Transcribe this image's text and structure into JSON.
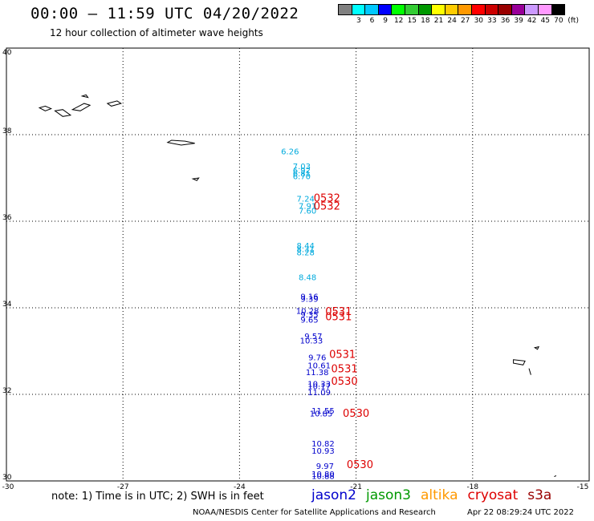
{
  "header": {
    "title": "00:00 – 11:59 UTC 04/20/2022",
    "subtitle": "12 hour collection of altimeter wave heights"
  },
  "color_scale": {
    "unit": "(ft)",
    "items": [
      {
        "label": "",
        "color": "#808080"
      },
      {
        "label": "3",
        "color": "#00ffff"
      },
      {
        "label": "6",
        "color": "#00c8ff"
      },
      {
        "label": "9",
        "color": "#0000ff"
      },
      {
        "label": "12",
        "color": "#00ff00"
      },
      {
        "label": "15",
        "color": "#33cc33"
      },
      {
        "label": "18",
        "color": "#009900"
      },
      {
        "label": "21",
        "color": "#ffff00"
      },
      {
        "label": "24",
        "color": "#ffcc00"
      },
      {
        "label": "27",
        "color": "#ff9900"
      },
      {
        "label": "30",
        "color": "#ff0000"
      },
      {
        "label": "33",
        "color": "#cc0000"
      },
      {
        "label": "36",
        "color": "#990000"
      },
      {
        "label": "39",
        "color": "#990099"
      },
      {
        "label": "42",
        "color": "#cc99ff"
      },
      {
        "label": "45",
        "color": "#ff99ff"
      },
      {
        "label": "70",
        "color": "#000000"
      }
    ]
  },
  "map": {
    "lon_range": [
      -30,
      -15
    ],
    "lat_range": [
      30,
      40
    ],
    "lon_ticks": [
      "-30",
      "-27",
      "-24",
      "-21",
      "-18",
      "-15"
    ],
    "lat_ticks": [
      "30",
      "32",
      "34",
      "36",
      "38",
      "40"
    ],
    "grid": true,
    "observations": [
      {
        "text": "6.26",
        "lon": -22.7,
        "lat": 37.55,
        "color": "#00aadd"
      },
      {
        "text": "7.03",
        "lon": -22.4,
        "lat": 37.2,
        "color": "#00aadd"
      },
      {
        "text": "6.92",
        "lon": -22.4,
        "lat": 37.11,
        "color": "#00aadd"
      },
      {
        "text": "6.81",
        "lon": -22.4,
        "lat": 37.04,
        "color": "#00aadd"
      },
      {
        "text": "6.70",
        "lon": -22.4,
        "lat": 36.97,
        "color": "#00aadd"
      },
      {
        "text": "7.24",
        "lon": -22.3,
        "lat": 36.45,
        "color": "#00aadd"
      },
      {
        "text": "7.91",
        "lon": -22.25,
        "lat": 36.29,
        "color": "#00aadd"
      },
      {
        "text": "7.60",
        "lon": -22.25,
        "lat": 36.18,
        "color": "#00aadd"
      },
      {
        "text": "8.44",
        "lon": -22.3,
        "lat": 35.37,
        "color": "#00aadd"
      },
      {
        "text": "8.31",
        "lon": -22.3,
        "lat": 35.29,
        "color": "#00aadd"
      },
      {
        "text": "8.28",
        "lon": -22.3,
        "lat": 35.21,
        "color": "#00aadd"
      },
      {
        "text": "8.48",
        "lon": -22.25,
        "lat": 34.64,
        "color": "#00aadd"
      },
      {
        "text": "9.16",
        "lon": -22.2,
        "lat": 34.19,
        "color": "#0000cc"
      },
      {
        "text": "9.39",
        "lon": -22.2,
        "lat": 34.14,
        "color": "#0000cc"
      },
      {
        "text": "10.28",
        "lon": -22.25,
        "lat": 33.86,
        "color": "#0000cc"
      },
      {
        "text": "9.35",
        "lon": -22.2,
        "lat": 33.78,
        "color": "#0000cc"
      },
      {
        "text": "9.65",
        "lon": -22.2,
        "lat": 33.66,
        "color": "#0000cc"
      },
      {
        "text": "9.57",
        "lon": -22.1,
        "lat": 33.28,
        "color": "#0000cc"
      },
      {
        "text": "10.33",
        "lon": -22.15,
        "lat": 33.18,
        "color": "#0000cc"
      },
      {
        "text": "9.76",
        "lon": -22.0,
        "lat": 32.79,
        "color": "#0000cc"
      },
      {
        "text": "10.61",
        "lon": -21.95,
        "lat": 32.6,
        "color": "#0000cc"
      },
      {
        "text": "11.38",
        "lon": -22.0,
        "lat": 32.44,
        "color": "#0000cc"
      },
      {
        "text": "10.33",
        "lon": -21.95,
        "lat": 32.18,
        "color": "#0000cc"
      },
      {
        "text": "10.17",
        "lon": -21.95,
        "lat": 32.12,
        "color": "#0000cc"
      },
      {
        "text": "11.09",
        "lon": -21.95,
        "lat": 31.98,
        "color": "#0000cc"
      },
      {
        "text": "11.55",
        "lon": -21.85,
        "lat": 31.56,
        "color": "#0000cc"
      },
      {
        "text": "10.85",
        "lon": -21.9,
        "lat": 31.49,
        "color": "#0000cc"
      },
      {
        "text": "10.82",
        "lon": -21.85,
        "lat": 30.8,
        "color": "#0000cc"
      },
      {
        "text": "10.93",
        "lon": -21.85,
        "lat": 30.63,
        "color": "#0000cc"
      },
      {
        "text": "9.97",
        "lon": -21.8,
        "lat": 30.28,
        "color": "#0000cc"
      },
      {
        "text": "10.80",
        "lon": -21.85,
        "lat": 30.09,
        "color": "#0000cc"
      },
      {
        "text": "10.88",
        "lon": -21.85,
        "lat": 30.05,
        "color": "#0000cc"
      }
    ],
    "time_labels": [
      {
        "text": "0532",
        "lon": -21.75,
        "lat": 36.45,
        "color": "#dd0000"
      },
      {
        "text": "0532",
        "lon": -21.75,
        "lat": 36.27,
        "color": "#dd0000"
      },
      {
        "text": "0531",
        "lon": -21.45,
        "lat": 33.83,
        "color": "#dd0000"
      },
      {
        "text": "0531",
        "lon": -21.45,
        "lat": 33.71,
        "color": "#dd0000"
      },
      {
        "text": "0531",
        "lon": -21.35,
        "lat": 32.84,
        "color": "#dd0000"
      },
      {
        "text": "0531",
        "lon": -21.3,
        "lat": 32.51,
        "color": "#dd0000"
      },
      {
        "text": "0530",
        "lon": -21.3,
        "lat": 32.22,
        "color": "#dd0000"
      },
      {
        "text": "0530",
        "lon": -21.0,
        "lat": 31.48,
        "color": "#dd0000"
      },
      {
        "text": "0530",
        "lon": -20.9,
        "lat": 30.3,
        "color": "#dd0000"
      }
    ],
    "islands": [
      {
        "name": "",
        "points": [
          [
            -29.15,
            38.62
          ],
          [
            -29.0,
            38.66
          ],
          [
            -28.85,
            38.6
          ],
          [
            -29.0,
            38.55
          ]
        ]
      },
      {
        "name": "",
        "points": [
          [
            -28.75,
            38.55
          ],
          [
            -28.55,
            38.58
          ],
          [
            -28.35,
            38.45
          ],
          [
            -28.55,
            38.42
          ]
        ]
      },
      {
        "name": "",
        "points": [
          [
            -28.3,
            38.58
          ],
          [
            -28.0,
            38.72
          ],
          [
            -27.85,
            38.68
          ],
          [
            -28.1,
            38.55
          ]
        ]
      },
      {
        "name": "",
        "points": [
          [
            -28.05,
            38.89
          ],
          [
            -27.95,
            38.92
          ],
          [
            -27.9,
            38.86
          ]
        ]
      },
      {
        "name": "",
        "points": [
          [
            -27.4,
            38.72
          ],
          [
            -27.15,
            38.78
          ],
          [
            -27.05,
            38.72
          ],
          [
            -27.3,
            38.66
          ]
        ]
      },
      {
        "name": "",
        "points": [
          [
            -25.85,
            37.82
          ],
          [
            -25.5,
            37.76
          ],
          [
            -25.15,
            37.8
          ],
          [
            -25.4,
            37.85
          ],
          [
            -25.75,
            37.87
          ]
        ]
      },
      {
        "name": "",
        "points": [
          [
            -25.2,
            36.98
          ],
          [
            -25.05,
            37.0
          ],
          [
            -25.1,
            36.94
          ]
        ]
      },
      {
        "name": "",
        "points": [
          [
            -16.95,
            32.8
          ],
          [
            -16.65,
            32.77
          ],
          [
            -16.7,
            32.68
          ],
          [
            -16.95,
            32.72
          ]
        ]
      },
      {
        "name": "",
        "points": [
          [
            -16.4,
            33.08
          ],
          [
            -16.3,
            33.1
          ],
          [
            -16.33,
            33.04
          ]
        ]
      },
      {
        "name": "",
        "points": [
          [
            -16.55,
            32.6
          ],
          [
            -16.5,
            32.45
          ]
        ]
      },
      {
        "name": "",
        "points": [
          [
            -15.9,
            30.1
          ],
          [
            -15.85,
            30.12
          ]
        ]
      }
    ]
  },
  "note": "note: 1) Time is in UTC; 2) SWH is in feet",
  "satellites": [
    {
      "name": "jason2",
      "color": "#0000cc"
    },
    {
      "name": "jason3",
      "color": "#009900"
    },
    {
      "name": "altika",
      "color": "#ff9900"
    },
    {
      "name": "cryosat",
      "color": "#dd0000"
    },
    {
      "name": "s3a",
      "color": "#990000"
    }
  ],
  "footer": {
    "credit": "NOAA/NESDIS Center for Satellite Applications and Research",
    "timestamp": "Apr 22 08:29:24 UTC 2022"
  }
}
